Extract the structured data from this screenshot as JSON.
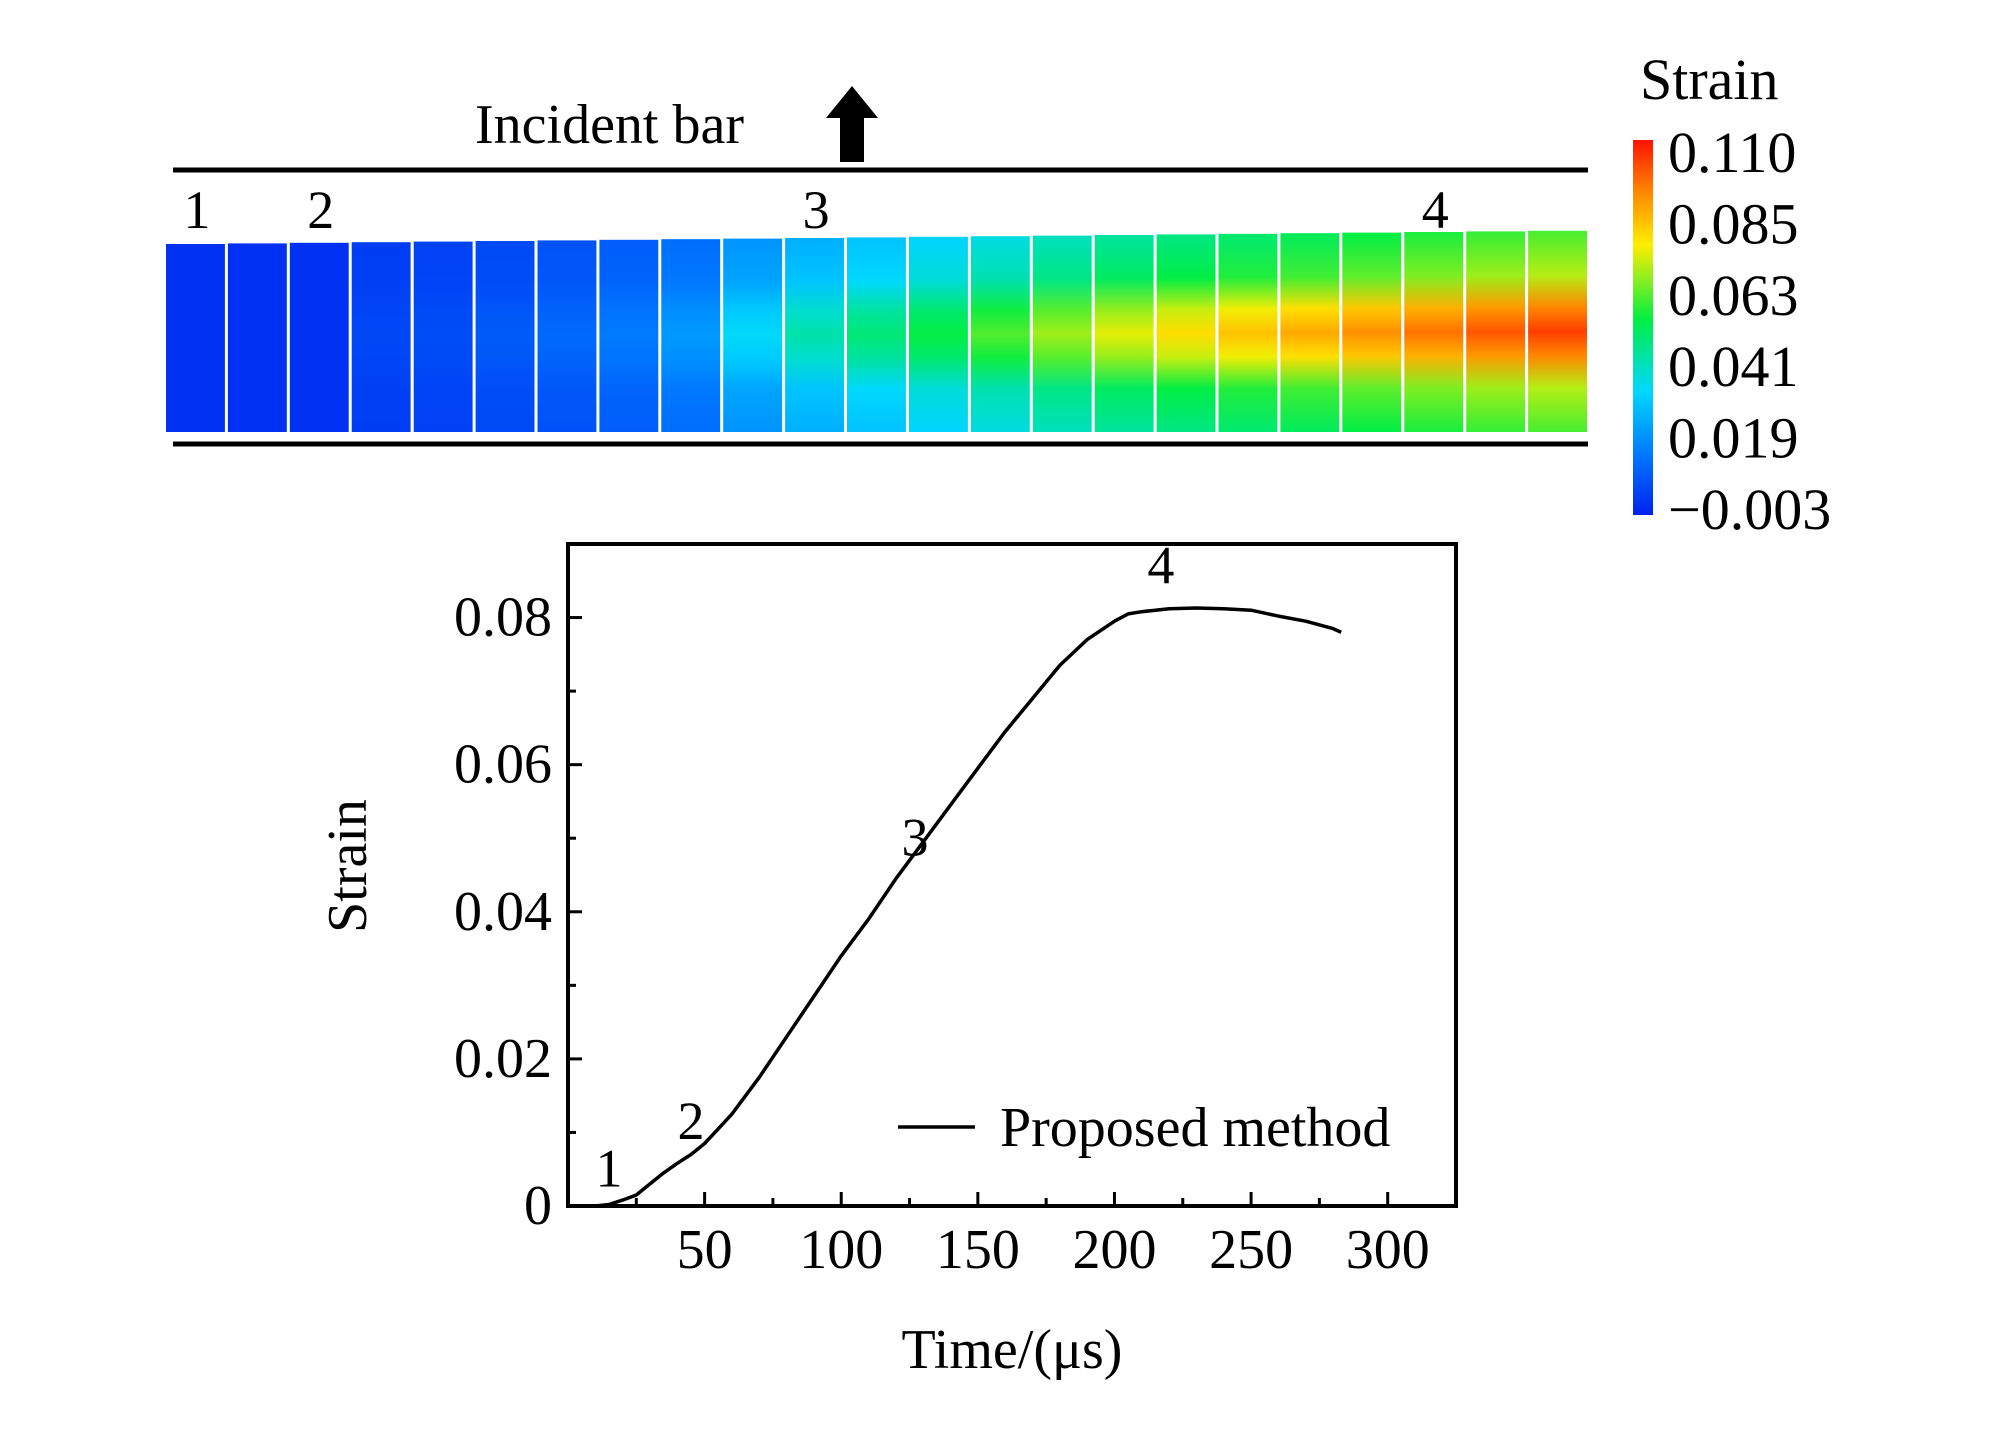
{
  "chart_data": [
    {
      "type": "heatmap",
      "title": "Incident bar",
      "description_labels": [
        "1",
        "2",
        "3",
        "4"
      ],
      "frame_label_positions": [
        1,
        3,
        11,
        21
      ],
      "frame_count": 23,
      "colorbar": {
        "title": "Strain",
        "ticks": [
          "0.110",
          "0.085",
          "0.063",
          "0.041",
          "0.019",
          "−0.003"
        ],
        "tick_values": [
          0.11,
          0.085,
          0.063,
          0.041,
          0.019,
          -0.003
        ],
        "min": -0.003,
        "max": 0.11,
        "colors": [
          "#0022ee",
          "#0077ff",
          "#00d8ff",
          "#00ee44",
          "#ffee00",
          "#ff8800",
          "#ff1100"
        ]
      },
      "frames_peak_strain": [
        0.0,
        0.0,
        0.0,
        0.005,
        0.006,
        0.009,
        0.012,
        0.016,
        0.022,
        0.035,
        0.044,
        0.05,
        0.056,
        0.063,
        0.07,
        0.076,
        0.081,
        0.085,
        0.089,
        0.093,
        0.097,
        0.101,
        0.104
      ]
    },
    {
      "type": "line",
      "xlabel": "Time/(μs)",
      "ylabel": "Strain",
      "xlim": [
        0,
        325
      ],
      "ylim": [
        0,
        0.09
      ],
      "x_ticks": [
        50,
        100,
        150,
        200,
        250,
        300
      ],
      "x_tick_labels": [
        "50",
        "100",
        "150",
        "200",
        "250",
        "300"
      ],
      "y_ticks": [
        0,
        0.02,
        0.04,
        0.06,
        0.08
      ],
      "y_tick_labels": [
        "0",
        "0.02",
        "0.04",
        "0.06",
        "0.08"
      ],
      "legend": "Proposed method",
      "legend_position": "bottom-right",
      "annotations": [
        {
          "label": "1",
          "x": 15,
          "y": 0.001
        },
        {
          "label": "2",
          "x": 45,
          "y": 0.0075
        },
        {
          "label": "3",
          "x": 127,
          "y": 0.046
        },
        {
          "label": "4",
          "x": 217,
          "y": 0.083
        }
      ],
      "series": [
        {
          "name": "Proposed method",
          "x": [
            10,
            15,
            20,
            25,
            30,
            35,
            40,
            45,
            50,
            55,
            60,
            70,
            80,
            90,
            100,
            110,
            120,
            130,
            140,
            150,
            160,
            170,
            180,
            190,
            200,
            205,
            210,
            215,
            220,
            230,
            240,
            250,
            260,
            270,
            280,
            283
          ],
          "y": [
            0.0,
            0.0002,
            0.0008,
            0.0015,
            0.003,
            0.0045,
            0.0058,
            0.007,
            0.0085,
            0.0105,
            0.0125,
            0.0175,
            0.023,
            0.0285,
            0.034,
            0.039,
            0.0445,
            0.0495,
            0.0545,
            0.0595,
            0.0645,
            0.069,
            0.0735,
            0.077,
            0.0795,
            0.0805,
            0.0808,
            0.081,
            0.0812,
            0.0813,
            0.0812,
            0.081,
            0.0802,
            0.0795,
            0.0785,
            0.078
          ]
        }
      ]
    }
  ]
}
